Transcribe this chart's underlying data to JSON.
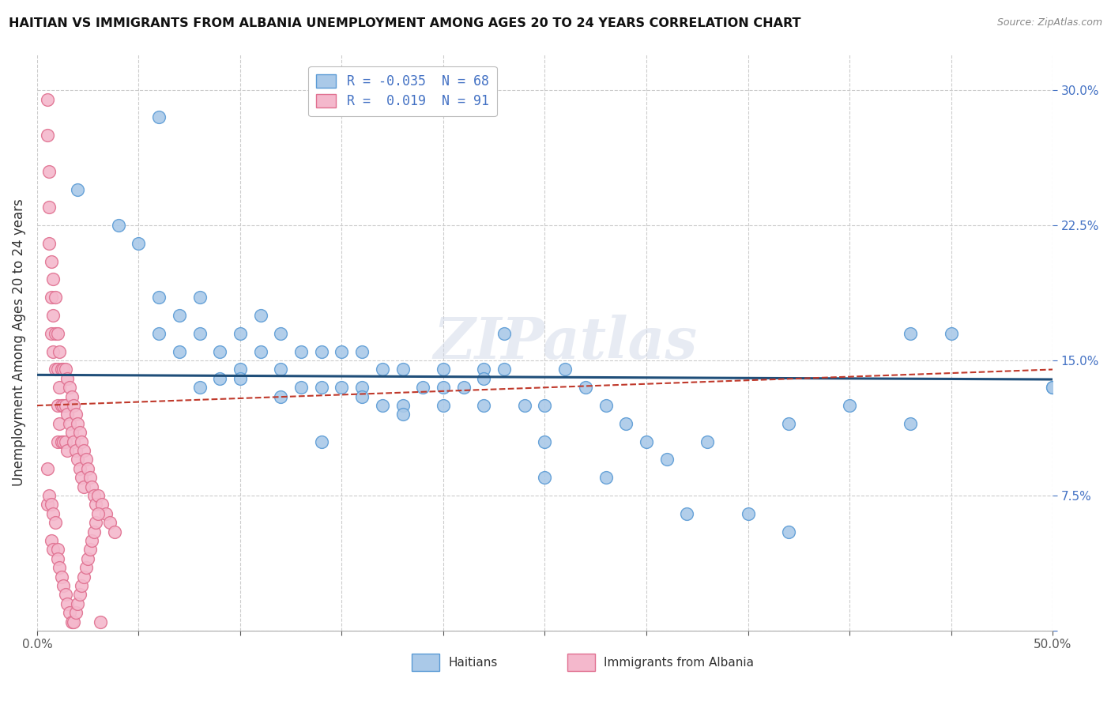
{
  "title": "HAITIAN VS IMMIGRANTS FROM ALBANIA UNEMPLOYMENT AMONG AGES 20 TO 24 YEARS CORRELATION CHART",
  "source": "Source: ZipAtlas.com",
  "ylabel": "Unemployment Among Ages 20 to 24 years",
  "xlim": [
    0.0,
    0.5
  ],
  "ylim": [
    0.0,
    0.32
  ],
  "xticks": [
    0.0,
    0.05,
    0.1,
    0.15,
    0.2,
    0.25,
    0.3,
    0.35,
    0.4,
    0.45,
    0.5
  ],
  "yticks": [
    0.0,
    0.075,
    0.15,
    0.225,
    0.3
  ],
  "ytick_labels": [
    "",
    "7.5%",
    "15.0%",
    "22.5%",
    "30.0%"
  ],
  "xtick_labels": [
    "0.0%",
    "",
    "",
    "",
    "",
    "",
    "",
    "",
    "",
    "",
    "50.0%"
  ],
  "blue_R": -0.035,
  "blue_N": 68,
  "pink_R": 0.019,
  "pink_N": 91,
  "blue_color": "#aac9e8",
  "blue_edge": "#5b9bd5",
  "pink_color": "#f4b8cc",
  "pink_edge": "#e07090",
  "blue_line_color": "#1f4e79",
  "pink_line_color": "#c0392b",
  "pink_line_style": "--",
  "legend_label_blue": "Haitians",
  "legend_label_pink": "Immigrants from Albania",
  "watermark": "ZIPatlas",
  "blue_scatter_x": [
    0.02,
    0.04,
    0.05,
    0.06,
    0.06,
    0.07,
    0.07,
    0.08,
    0.08,
    0.09,
    0.1,
    0.1,
    0.11,
    0.11,
    0.12,
    0.12,
    0.13,
    0.13,
    0.14,
    0.14,
    0.15,
    0.15,
    0.16,
    0.16,
    0.17,
    0.17,
    0.18,
    0.18,
    0.19,
    0.2,
    0.2,
    0.21,
    0.22,
    0.22,
    0.23,
    0.23,
    0.24,
    0.25,
    0.25,
    0.26,
    0.27,
    0.28,
    0.29,
    0.3,
    0.31,
    0.33,
    0.35,
    0.37,
    0.4,
    0.43,
    0.45,
    0.5,
    0.08,
    0.09,
    0.1,
    0.12,
    0.14,
    0.16,
    0.18,
    0.2,
    0.22,
    0.25,
    0.28,
    0.32,
    0.37,
    0.43,
    0.5,
    0.06
  ],
  "blue_scatter_y": [
    0.245,
    0.225,
    0.215,
    0.185,
    0.165,
    0.175,
    0.155,
    0.165,
    0.185,
    0.155,
    0.165,
    0.145,
    0.175,
    0.155,
    0.165,
    0.145,
    0.155,
    0.135,
    0.155,
    0.135,
    0.155,
    0.135,
    0.155,
    0.135,
    0.145,
    0.125,
    0.145,
    0.125,
    0.135,
    0.145,
    0.125,
    0.135,
    0.145,
    0.125,
    0.165,
    0.145,
    0.125,
    0.105,
    0.125,
    0.145,
    0.135,
    0.125,
    0.115,
    0.105,
    0.095,
    0.105,
    0.065,
    0.115,
    0.125,
    0.165,
    0.165,
    0.135,
    0.135,
    0.14,
    0.14,
    0.13,
    0.105,
    0.13,
    0.12,
    0.135,
    0.14,
    0.085,
    0.085,
    0.065,
    0.055,
    0.115,
    0.135,
    0.285
  ],
  "pink_scatter_x": [
    0.005,
    0.005,
    0.006,
    0.006,
    0.006,
    0.007,
    0.007,
    0.007,
    0.008,
    0.008,
    0.008,
    0.009,
    0.009,
    0.009,
    0.01,
    0.01,
    0.01,
    0.01,
    0.011,
    0.011,
    0.011,
    0.012,
    0.012,
    0.012,
    0.013,
    0.013,
    0.013,
    0.014,
    0.014,
    0.014,
    0.015,
    0.015,
    0.015,
    0.016,
    0.016,
    0.017,
    0.017,
    0.018,
    0.018,
    0.019,
    0.019,
    0.02,
    0.02,
    0.021,
    0.021,
    0.022,
    0.022,
    0.023,
    0.023,
    0.024,
    0.025,
    0.026,
    0.027,
    0.028,
    0.029,
    0.03,
    0.032,
    0.034,
    0.036,
    0.038,
    0.005,
    0.005,
    0.006,
    0.007,
    0.007,
    0.008,
    0.008,
    0.009,
    0.01,
    0.01,
    0.011,
    0.012,
    0.013,
    0.014,
    0.015,
    0.016,
    0.017,
    0.018,
    0.019,
    0.02,
    0.021,
    0.022,
    0.023,
    0.024,
    0.025,
    0.026,
    0.027,
    0.028,
    0.029,
    0.03,
    0.031
  ],
  "pink_scatter_y": [
    0.295,
    0.275,
    0.255,
    0.235,
    0.215,
    0.205,
    0.185,
    0.165,
    0.195,
    0.175,
    0.155,
    0.185,
    0.165,
    0.145,
    0.165,
    0.145,
    0.125,
    0.105,
    0.155,
    0.135,
    0.115,
    0.145,
    0.125,
    0.105,
    0.145,
    0.125,
    0.105,
    0.145,
    0.125,
    0.105,
    0.14,
    0.12,
    0.1,
    0.135,
    0.115,
    0.13,
    0.11,
    0.125,
    0.105,
    0.12,
    0.1,
    0.115,
    0.095,
    0.11,
    0.09,
    0.105,
    0.085,
    0.1,
    0.08,
    0.095,
    0.09,
    0.085,
    0.08,
    0.075,
    0.07,
    0.075,
    0.07,
    0.065,
    0.06,
    0.055,
    0.09,
    0.07,
    0.075,
    0.07,
    0.05,
    0.065,
    0.045,
    0.06,
    0.045,
    0.04,
    0.035,
    0.03,
    0.025,
    0.02,
    0.015,
    0.01,
    0.005,
    0.005,
    0.01,
    0.015,
    0.02,
    0.025,
    0.03,
    0.035,
    0.04,
    0.045,
    0.05,
    0.055,
    0.06,
    0.065,
    0.005
  ]
}
